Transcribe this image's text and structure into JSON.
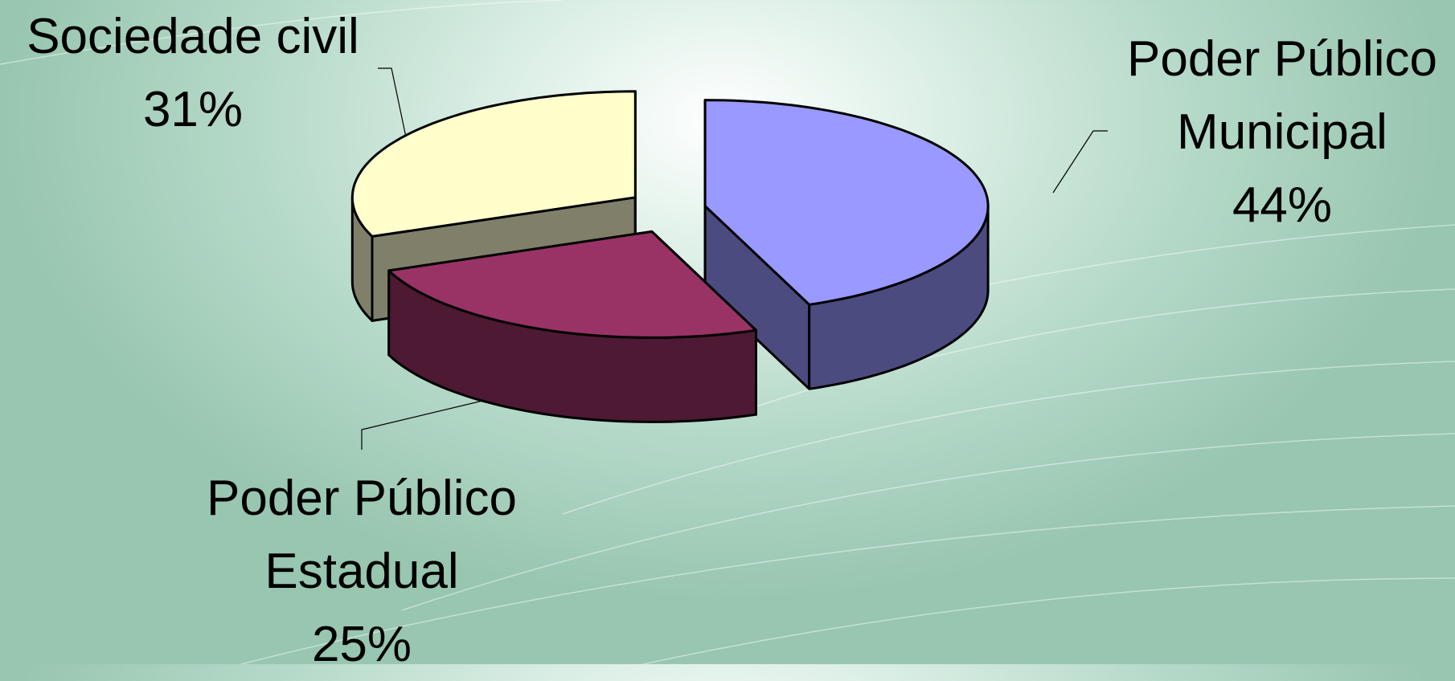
{
  "chart_data": {
    "type": "pie3d",
    "categories": [
      "Poder Público Municipal",
      "Poder Público Estadual",
      "Sociedade civil"
    ],
    "values": [
      44,
      25,
      31
    ],
    "value_labels": [
      "44%",
      "25%",
      "31%"
    ],
    "colors": [
      "#9999ff",
      "#993366",
      "#ffffcc"
    ],
    "side_colors": [
      "#4b4b80",
      "#4d1933",
      "#80806a"
    ]
  }
}
